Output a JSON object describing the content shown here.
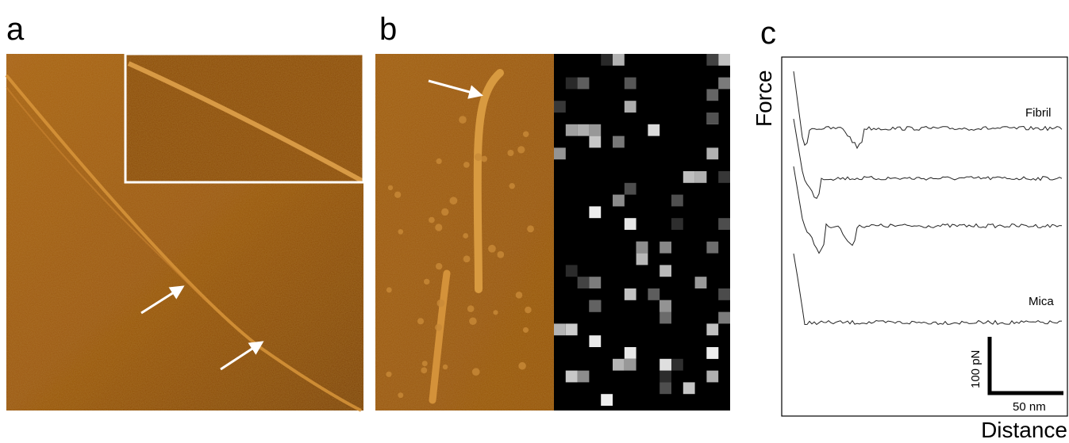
{
  "panels": {
    "a": {
      "label": "a"
    },
    "b": {
      "label": "b"
    },
    "c": {
      "label": "c",
      "y_axis": "Force",
      "x_axis": "Distance",
      "curve_labels": [
        "Fibril",
        "Mica"
      ],
      "scale_y": "100 pN",
      "scale_x": "50 nm"
    }
  }
}
